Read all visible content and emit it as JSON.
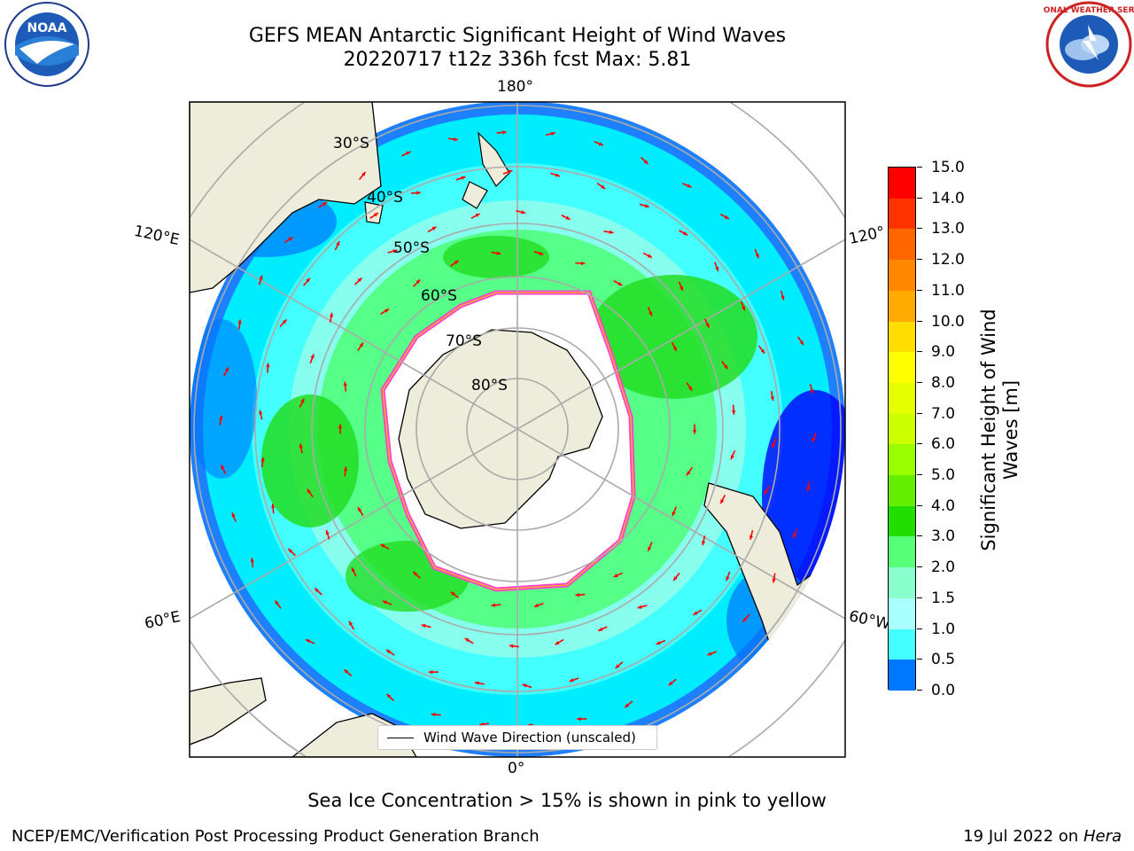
{
  "title": {
    "line1": "GEFS MEAN Antarctic Significant Height of Wind Waves",
    "line2": "20220717 t12z 336h fcst   Max: 5.81"
  },
  "logos": {
    "noaa_text": "NOAA",
    "nws_text": "NATIONAL WEATHER SERVICE"
  },
  "map": {
    "longitude_labels": [
      "180°",
      "120°E",
      "120°",
      "60°E",
      "60°W",
      "0°"
    ],
    "latitude_labels": [
      "30°S",
      "40°S",
      "50°S",
      "60°S",
      "70°S",
      "80°S"
    ],
    "legend_label": "Wind Wave Direction (unscaled)",
    "colors": {
      "land": "#eeecdb",
      "ice_edge": "#ff3fd0",
      "vector": "#ff0000"
    }
  },
  "colorbar": {
    "label": "Significant Height of Wind Waves [m]",
    "ticks": [
      "15.0",
      "14.0",
      "13.0",
      "12.0",
      "11.0",
      "10.0",
      "9.0",
      "8.0",
      "7.0",
      "6.0",
      "5.0",
      "4.0",
      "3.0",
      "2.0",
      "1.5",
      "1.0",
      "0.5",
      "0.0"
    ],
    "colors_top_to_bottom": [
      "#ff0000",
      "#ff3300",
      "#ff6600",
      "#ff8800",
      "#ffaa00",
      "#ffdd00",
      "#ffff00",
      "#e6ff00",
      "#ccff00",
      "#99ff00",
      "#66ee00",
      "#22dd00",
      "#55ff77",
      "#88ffcc",
      "#aaffff",
      "#44ffff",
      "#00ffff",
      "#0077ff",
      "#0000ff"
    ]
  },
  "subtitle": "Sea Ice Concentration > 15% is shown in pink to yellow",
  "footer": {
    "left": "NCEP/EMC/Verification Post Processing Product Generation Branch",
    "right_date": "19 Jul 2022 on ",
    "right_host": "Hera"
  }
}
